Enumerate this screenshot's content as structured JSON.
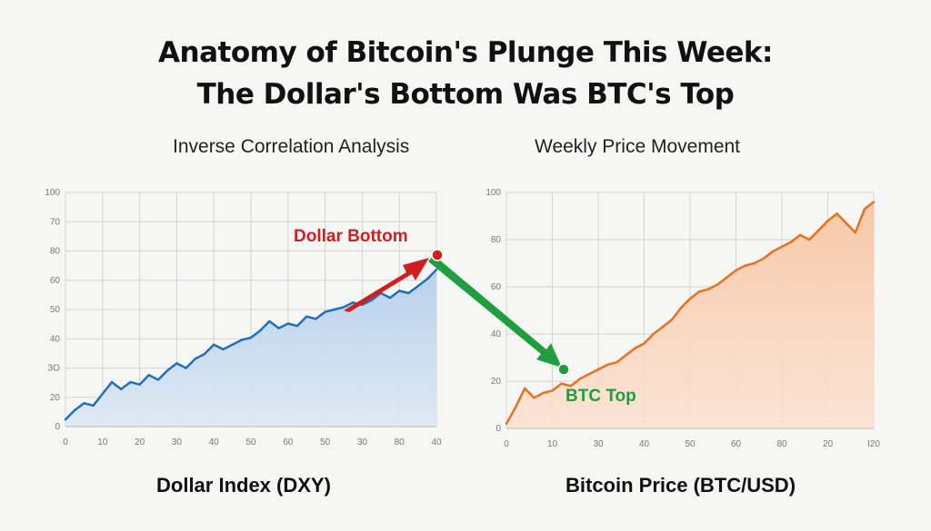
{
  "title": {
    "line1": "Anatomy of Bitcoin's Plunge This Week:",
    "line2": "The Dollar's Bottom Was BTC's Top"
  },
  "subtitles": {
    "left": "Inverse Correlation Analysis",
    "right": "Weekly Price Movement"
  },
  "panel_labels": {
    "left": "Dollar Index (DXY)",
    "right": "Bitcoin Price (BTC/USD)"
  },
  "annotations": {
    "dollar_bottom": "Dollar Bottom",
    "btc_top": "BTC Top"
  },
  "colors": {
    "dxy_line": "#1f6fbf",
    "dxy_fill": "#c6dbf0",
    "btc_line": "#e8701f",
    "btc_fill": "#f9d3ba",
    "red_arrow": "#d11f1f",
    "green_arrow": "#1e9e3c",
    "grid": "#d4d4d4"
  },
  "chart_data": [
    {
      "type": "area",
      "name": "Dollar Index (DXY)",
      "xlabel": "",
      "ylabel": "",
      "xlim": [
        0,
        40
      ],
      "ylim": [
        0,
        100
      ],
      "x_tick_labels": [
        "0",
        "10",
        "20",
        "30",
        "40",
        "50",
        "60",
        "50",
        "30",
        "80",
        "40"
      ],
      "y_tick_labels": [
        "0",
        "20",
        "ЗО",
        "40",
        "50",
        "60",
        "80",
        "70",
        "100"
      ],
      "x": [
        0,
        1,
        2,
        3,
        4,
        5,
        6,
        7,
        8,
        9,
        10,
        11,
        12,
        13,
        14,
        15,
        16,
        17,
        18,
        19,
        20,
        21,
        22,
        23,
        24,
        25,
        26,
        27,
        28,
        29,
        30,
        31,
        32,
        33,
        34,
        35,
        36,
        37,
        38,
        39,
        40
      ],
      "values": [
        3,
        7,
        10,
        9,
        14,
        19,
        16,
        19,
        18,
        22,
        20,
        24,
        27,
        25,
        29,
        31,
        35,
        33,
        35,
        37,
        38,
        41,
        45,
        42,
        44,
        43,
        47,
        46,
        49,
        50,
        51,
        53,
        52,
        54,
        57,
        55,
        58,
        57,
        60,
        63,
        67
      ],
      "annotation": "Dollar Bottom"
    },
    {
      "type": "area",
      "name": "Bitcoin Price (BTC/USD)",
      "xlabel": "",
      "ylabel": "",
      "xlim": [
        0,
        40
      ],
      "ylim": [
        0,
        100
      ],
      "x_tick_labels": [
        "0",
        "10",
        "30",
        "40",
        "50",
        "60",
        "80",
        "20",
        "I20"
      ],
      "y_tick_labels": [
        "0",
        "20",
        "40",
        "60",
        "80",
        "100"
      ],
      "x": [
        0,
        1,
        2,
        3,
        4,
        5,
        6,
        7,
        8,
        9,
        10,
        11,
        12,
        13,
        14,
        15,
        16,
        17,
        18,
        19,
        20,
        21,
        22,
        23,
        24,
        25,
        26,
        27,
        28,
        29,
        30,
        31,
        32,
        33,
        34,
        35,
        36,
        37,
        38,
        39,
        40
      ],
      "values": [
        2,
        9,
        17,
        13,
        15,
        16,
        19,
        18,
        21,
        23,
        25,
        27,
        28,
        31,
        34,
        36,
        40,
        43,
        46,
        51,
        55,
        58,
        59,
        61,
        64,
        67,
        69,
        70,
        72,
        75,
        77,
        79,
        82,
        80,
        84,
        88,
        91,
        87,
        83,
        93,
        96
      ],
      "annotation": "BTC Top"
    }
  ]
}
